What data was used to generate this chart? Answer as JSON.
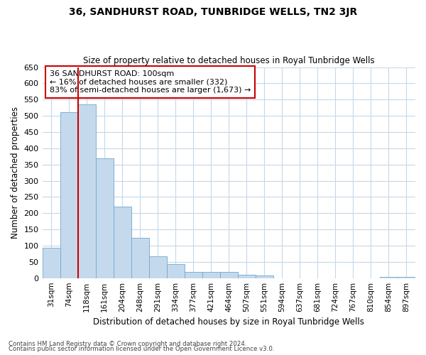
{
  "title": "36, SANDHURST ROAD, TUNBRIDGE WELLS, TN2 3JR",
  "subtitle": "Size of property relative to detached houses in Royal Tunbridge Wells",
  "xlabel": "Distribution of detached houses by size in Royal Tunbridge Wells",
  "ylabel": "Number of detached properties",
  "footnote1": "Contains HM Land Registry data © Crown copyright and database right 2024.",
  "footnote2": "Contains public sector information licensed under the Open Government Licence v3.0.",
  "annotation_line1": "36 SANDHURST ROAD: 100sqm",
  "annotation_line2": "← 16% of detached houses are smaller (332)",
  "annotation_line3": "83% of semi-detached houses are larger (1,673) →",
  "categories": [
    "31sqm",
    "74sqm",
    "118sqm",
    "161sqm",
    "204sqm",
    "248sqm",
    "291sqm",
    "334sqm",
    "377sqm",
    "421sqm",
    "464sqm",
    "507sqm",
    "551sqm",
    "594sqm",
    "637sqm",
    "681sqm",
    "724sqm",
    "767sqm",
    "810sqm",
    "854sqm",
    "897sqm"
  ],
  "values": [
    93,
    512,
    535,
    368,
    220,
    125,
    68,
    42,
    18,
    18,
    18,
    10,
    8,
    0,
    0,
    0,
    0,
    0,
    0,
    3,
    3
  ],
  "bar_color": "#c5d9ed",
  "bar_edge_color": "#6fa8cc",
  "property_line_x": 1.5,
  "property_line_color": "#cc0000",
  "annotation_box_color": "#cc0000",
  "background_color": "#ffffff",
  "grid_color": "#c5d8ea",
  "ylim": [
    0,
    650
  ],
  "yticks": [
    0,
    50,
    100,
    150,
    200,
    250,
    300,
    350,
    400,
    450,
    500,
    550,
    600,
    650
  ]
}
